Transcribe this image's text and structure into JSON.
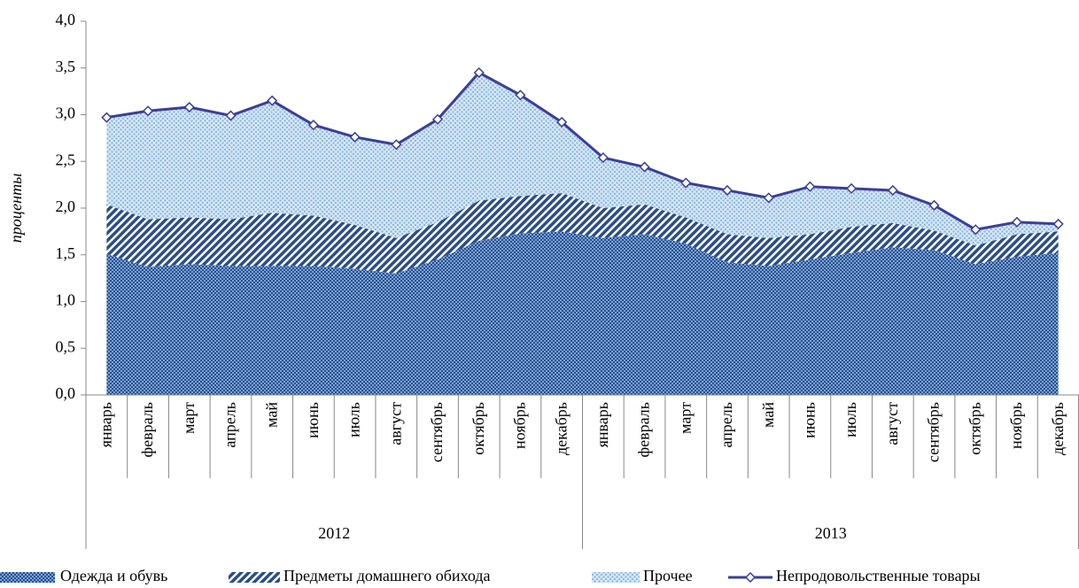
{
  "chart_data": {
    "type": "stacked_area_line",
    "y_label": "проценты",
    "groups": [
      {
        "label": "2012",
        "categories": [
          "январь",
          "февраль",
          "март",
          "апрель",
          "май",
          "июнь",
          "июль",
          "август",
          "сентябрь",
          "октябрь",
          "ноябрь",
          "декабрь"
        ]
      },
      {
        "label": "2013",
        "categories": [
          "январь",
          "февраль",
          "март",
          "апрель",
          "май",
          "июнь",
          "июль",
          "август",
          "сентябрь",
          "октябрь",
          "ноябрь",
          "декабрь"
        ]
      }
    ],
    "series": [
      {
        "name": "Одежда и обувь",
        "kind": "area",
        "color": "#2f5f9f",
        "values": [
          1.51,
          1.37,
          1.4,
          1.38,
          1.38,
          1.38,
          1.35,
          1.3,
          1.45,
          1.65,
          1.73,
          1.75,
          1.68,
          1.72,
          1.62,
          1.42,
          1.38,
          1.45,
          1.52,
          1.58,
          1.55,
          1.4,
          1.48,
          1.52
        ]
      },
      {
        "name": "Предметы домашнего обихода",
        "kind": "area",
        "color": "#2b4d8a",
        "values": [
          0.53,
          0.51,
          0.5,
          0.5,
          0.57,
          0.54,
          0.47,
          0.38,
          0.4,
          0.43,
          0.4,
          0.41,
          0.32,
          0.32,
          0.28,
          0.3,
          0.3,
          0.27,
          0.28,
          0.26,
          0.21,
          0.2,
          0.24,
          0.23
        ]
      },
      {
        "name": "Прочее",
        "kind": "area",
        "color": "#9cc3e4",
        "values": [
          0.94,
          1.16,
          1.18,
          1.11,
          1.2,
          0.97,
          0.94,
          1.0,
          1.1,
          1.37,
          1.08,
          0.76,
          0.54,
          0.4,
          0.37,
          0.47,
          0.43,
          0.51,
          0.41,
          0.35,
          0.27,
          0.17,
          0.13,
          0.08
        ]
      },
      {
        "name": "Непродовольственные  товары",
        "kind": "line",
        "color": "#3a3f98",
        "values": [
          2.97,
          3.04,
          3.08,
          2.99,
          3.15,
          2.89,
          2.76,
          2.68,
          2.95,
          3.45,
          3.21,
          2.92,
          2.54,
          2.44,
          2.27,
          2.19,
          2.11,
          2.23,
          2.21,
          2.19,
          2.03,
          1.77,
          1.85,
          1.83
        ]
      }
    ],
    "ylim": [
      0,
      4
    ],
    "yticks": [
      {
        "value": 0,
        "label": "0,0"
      },
      {
        "value": 0.5,
        "label": "0,5"
      },
      {
        "value": 1,
        "label": "1,0"
      },
      {
        "value": 1.5,
        "label": "1,5"
      },
      {
        "value": 2,
        "label": "2,0"
      },
      {
        "value": 2.5,
        "label": "2,5"
      },
      {
        "value": 3,
        "label": "3,0"
      },
      {
        "value": 3.5,
        "label": "3,5"
      },
      {
        "value": 4,
        "label": "4,0"
      }
    ],
    "grid": false,
    "legend": "bottom"
  }
}
